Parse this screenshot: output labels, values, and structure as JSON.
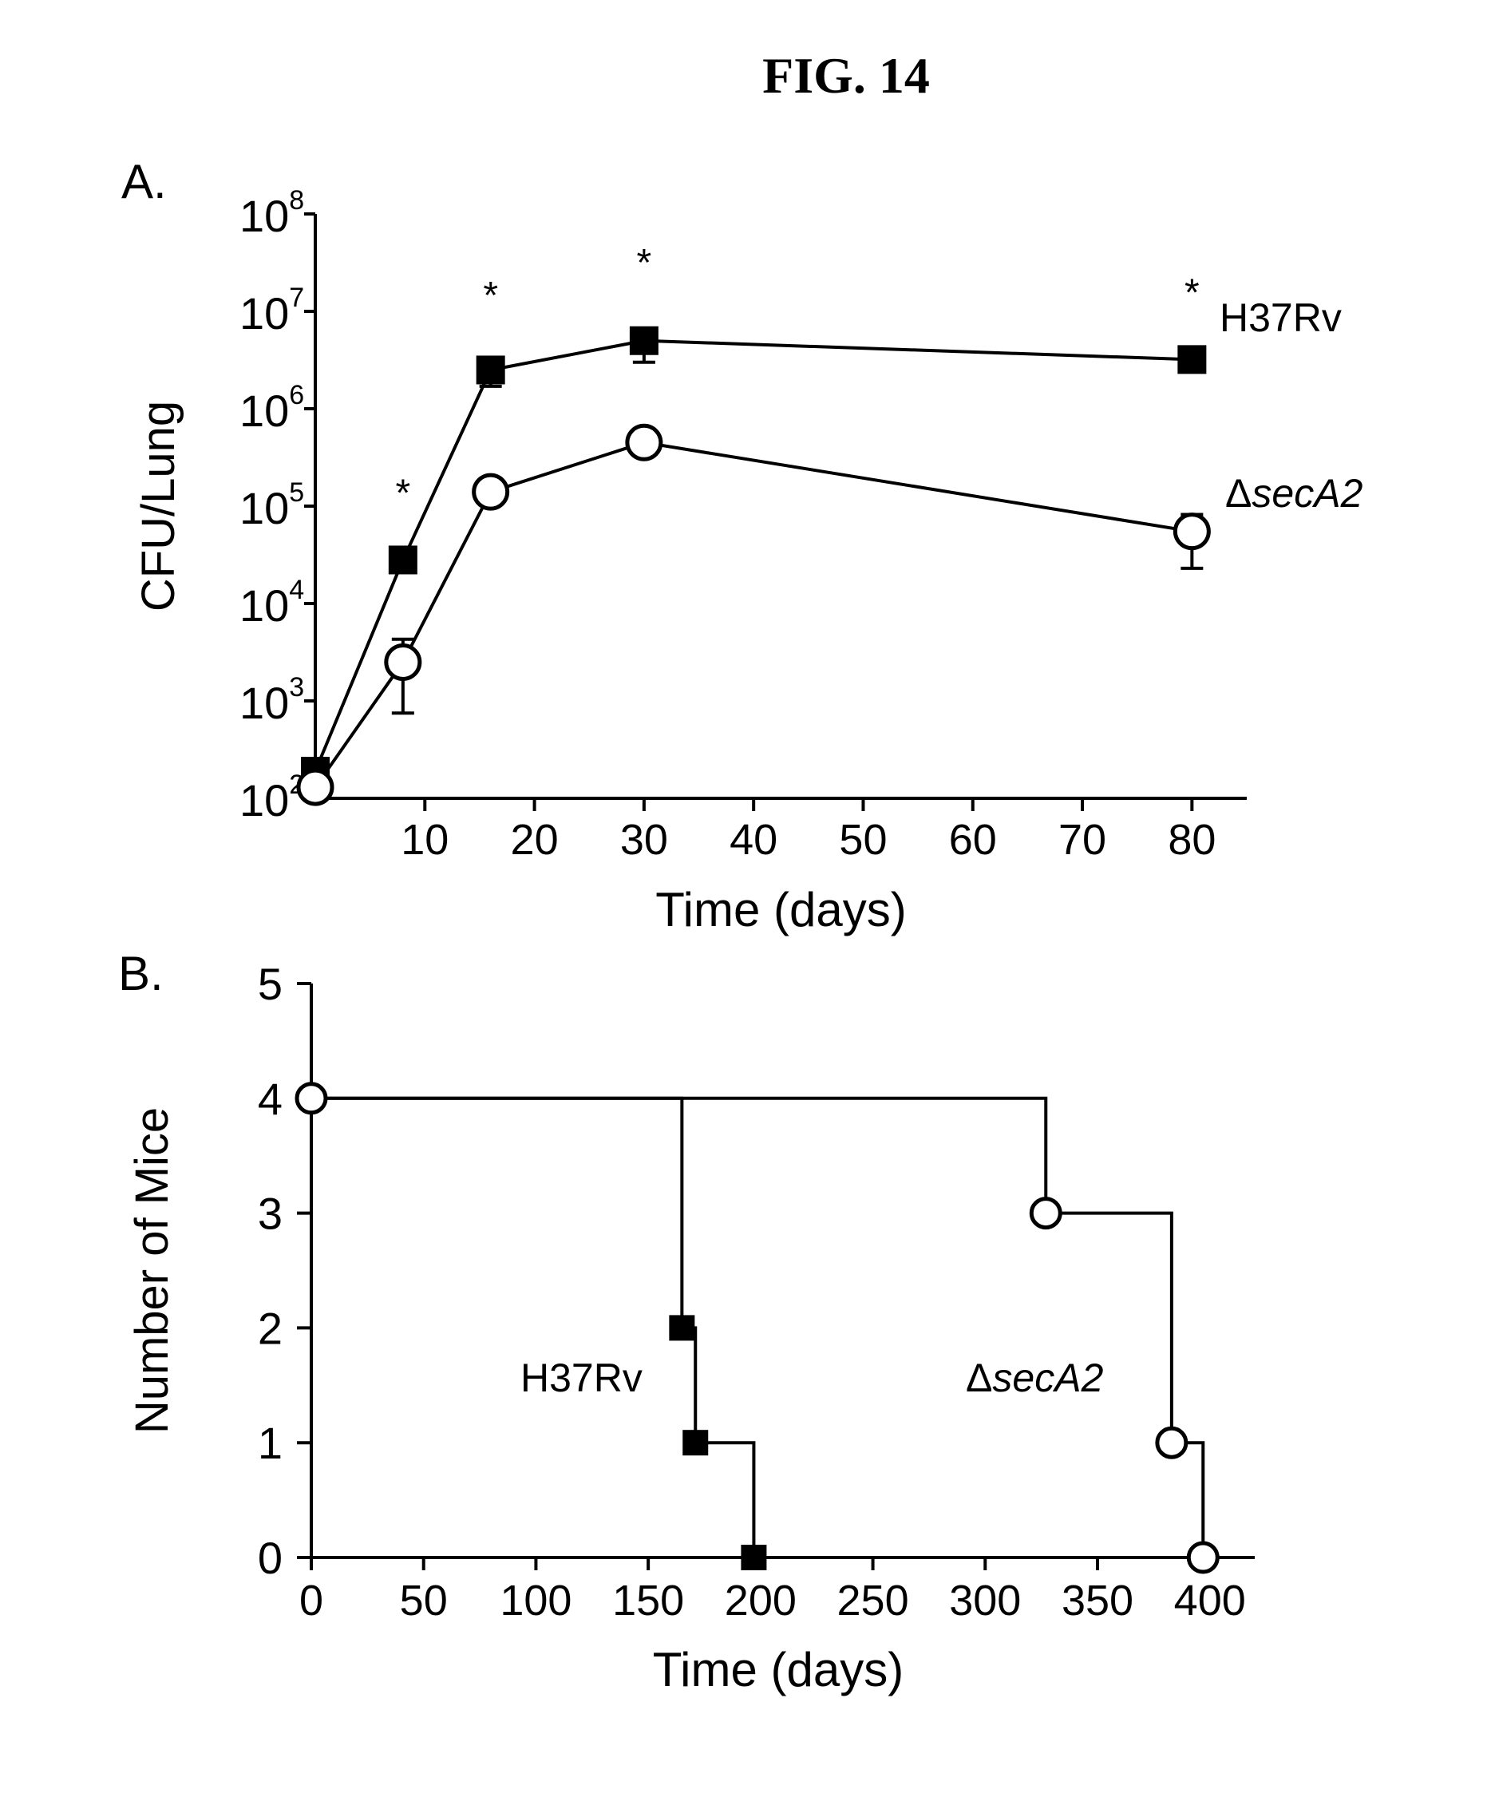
{
  "figure_title": "FIG. 14",
  "chart_data": [
    {
      "panel_label": "A.",
      "type": "line",
      "xlabel": "Time (days)",
      "ylabel": "CFU/Lung",
      "xlim": [
        0,
        85
      ],
      "ylim": [
        100,
        100000000
      ],
      "yscale": "log",
      "x_ticks": [
        10,
        20,
        30,
        40,
        50,
        60,
        70,
        80
      ],
      "y_ticks": [
        {
          "value": 100,
          "base": "10",
          "exp": "2"
        },
        {
          "value": 1000,
          "base": "10",
          "exp": "3"
        },
        {
          "value": 10000,
          "base": "10",
          "exp": "4"
        },
        {
          "value": 100000,
          "base": "10",
          "exp": "5"
        },
        {
          "value": 1000000,
          "base": "10",
          "exp": "6"
        },
        {
          "value": 10000000,
          "base": "10",
          "exp": "7"
        },
        {
          "value": 100000000,
          "base": "10",
          "exp": "8"
        }
      ],
      "series": [
        {
          "name": "H37Rv",
          "marker": "filled-square",
          "x": [
            0,
            8,
            16,
            30,
            80
          ],
          "y": [
            190,
            28000,
            2500000,
            5000000,
            3200000
          ],
          "err_low": [
            0,
            0,
            1700000,
            3000000,
            0
          ],
          "err_high": [
            0,
            0,
            3000000,
            6500000,
            0
          ]
        },
        {
          "name": "ΔsecA2",
          "marker": "open-circle",
          "x": [
            0,
            8,
            16,
            30,
            80
          ],
          "y": [
            130,
            2500,
            140000,
            450000,
            55000
          ],
          "err_low": [
            0,
            750,
            0,
            0,
            23000
          ],
          "err_high": [
            0,
            4300,
            0,
            0,
            82000
          ]
        }
      ],
      "annotations": [
        {
          "text": "*",
          "x": 8
        },
        {
          "text": "*",
          "x": 16
        },
        {
          "text": "*",
          "x": 30
        },
        {
          "text": "*",
          "x": 80
        }
      ]
    },
    {
      "panel_label": "B.",
      "type": "line",
      "step": true,
      "xlabel": "Time (days)",
      "ylabel": "Number of Mice",
      "xlim": [
        0,
        420
      ],
      "ylim": [
        0,
        5
      ],
      "x_ticks": [
        0,
        50,
        100,
        150,
        200,
        250,
        300,
        350,
        400
      ],
      "y_ticks": [
        0,
        1,
        2,
        3,
        4,
        5
      ],
      "series": [
        {
          "name": "H37Rv",
          "marker": "filled-square",
          "x": [
            0,
            165,
            171,
            197
          ],
          "y": [
            4,
            2,
            1,
            0
          ]
        },
        {
          "name": "ΔsecA2",
          "marker": "open-circle",
          "x": [
            0,
            327,
            383,
            397
          ],
          "y": [
            4,
            3,
            1,
            0
          ]
        }
      ]
    }
  ]
}
